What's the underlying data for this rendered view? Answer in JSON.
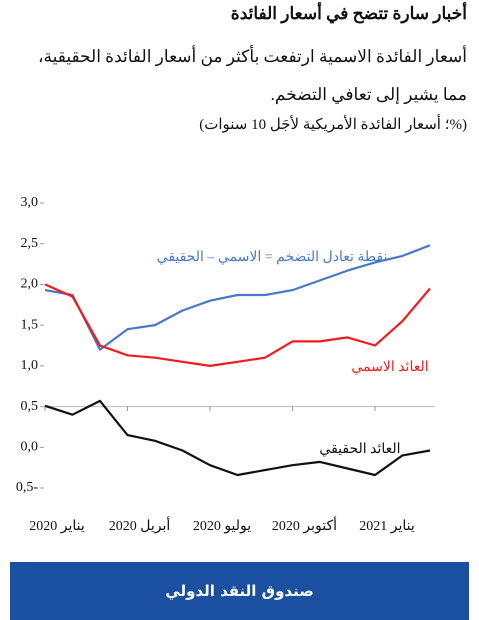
{
  "chart_data": {
    "type": "line",
    "title": "أخبار سارة تتضح في أسعار الفائدة",
    "subtitle": "أسعار الفائدة الاسمية ارتفعت بأكثر من أسعار الفائدة الحقيقية، مما يشير إلى تعافي التضخم.",
    "units": "(%؛ أسعار الفائدة الأمريكية لأجَل 10 سنوات)",
    "source": "صندوق النقد الدولي",
    "x": [
      "2020-01",
      "2020-02",
      "2020-03",
      "2020-04",
      "2020-05",
      "2020-06",
      "2020-07",
      "2020-08",
      "2020-09",
      "2020-10",
      "2020-11",
      "2020-12",
      "2021-01",
      "2021-02",
      "2021-03"
    ],
    "xlim": [
      "2020-01",
      "2021-03"
    ],
    "xticks": [
      {
        "value": "2020-01",
        "label": "يناير 2020"
      },
      {
        "value": "2020-04",
        "label": "أبريل 2020"
      },
      {
        "value": "2020-07",
        "label": "يوليو 2020"
      },
      {
        "value": "2020-10",
        "label": "أكتوبر 2020"
      },
      {
        "value": "2021-01",
        "label": "يناير 2021"
      }
    ],
    "ylim": [
      -0.5,
      3.0
    ],
    "yticks": [
      {
        "value": 3.0,
        "label": "3,0"
      },
      {
        "value": 2.5,
        "label": "2,5"
      },
      {
        "value": 2.0,
        "label": "2,0"
      },
      {
        "value": 1.5,
        "label": "1,5"
      },
      {
        "value": 1.0,
        "label": "1,0"
      },
      {
        "value": 0.5,
        "label": "0,5"
      },
      {
        "value": 0.0,
        "label": "0,0"
      },
      {
        "value": -0.5,
        "label": "0,5-"
      }
    ],
    "series": [
      {
        "name": "نقطة تعادل التضخم = الاسمي – الحقيقي",
        "color": "#4a78c8",
        "values": [
          1.93,
          1.87,
          1.2,
          1.45,
          1.5,
          1.68,
          1.8,
          1.87,
          1.87,
          1.93,
          2.05,
          2.17,
          2.27,
          2.35,
          2.48
        ]
      },
      {
        "name": "العائد الاسمي",
        "color": "#ee1c1c",
        "values": [
          2.0,
          1.85,
          1.25,
          1.13,
          1.1,
          1.05,
          1.0,
          1.05,
          1.1,
          1.3,
          1.3,
          1.35,
          1.25,
          1.55,
          1.95
        ]
      },
      {
        "name": "العائد الحقيقي",
        "color": "#111111",
        "values": [
          0.51,
          0.4,
          0.57,
          0.15,
          0.08,
          -0.04,
          -0.22,
          -0.34,
          -0.28,
          -0.22,
          -0.18,
          -0.26,
          -0.34,
          -0.1,
          -0.04
        ]
      }
    ]
  }
}
